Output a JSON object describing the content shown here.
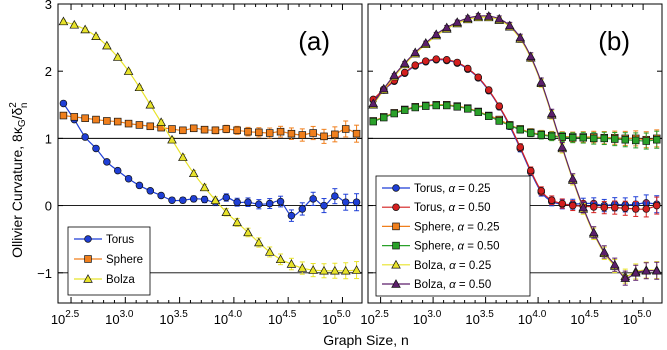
{
  "chart_data": {
    "type": "scatter",
    "xlabel": "Graph Size, n",
    "ylabel": "Ollivier Curvature, 8κ_G/δ_n^2",
    "ylabel_main": "Ollivier Curvature, 8κ",
    "ylabel_sub1": "G",
    "ylabel_slash": "/δ",
    "ylabel_sup": "2",
    "ylabel_sub2": "n",
    "x_scale": "log10",
    "xlim_log10": [
      2.38,
      5.18
    ],
    "ylim": [
      -1.45,
      3.0
    ],
    "x_tick_base": "10",
    "x_tick_exponents_a": [
      "2.5",
      "3.0",
      "3.5",
      "4.0",
      "4.5",
      "5.0"
    ],
    "x_tick_exponents_b": [
      "2.5",
      "3.0",
      "3.5",
      "4.0",
      "4.5",
      "5.0"
    ],
    "y_tick_labels": [
      "−1",
      "0",
      "1",
      "2",
      "3"
    ],
    "y_ticks": [
      -1,
      0,
      1,
      2,
      3
    ],
    "reference_lines": [
      -1,
      0,
      1
    ],
    "panels": [
      {
        "label": "(a)",
        "legend": [
          "Torus",
          "Sphere",
          "Bolza"
        ],
        "legend_location": "lower-left",
        "series": [
          {
            "name": "Torus",
            "marker": "circle",
            "color": "#1f3fd6",
            "x_log10": [
              2.43,
              2.53,
              2.63,
              2.73,
              2.83,
              2.93,
              3.03,
              3.13,
              3.23,
              3.33,
              3.43,
              3.53,
              3.63,
              3.73,
              3.83,
              3.93,
              4.03,
              4.13,
              4.23,
              4.33,
              4.43,
              4.53,
              4.63,
              4.73,
              4.83,
              4.93,
              5.03,
              5.13
            ],
            "y": [
              1.52,
              1.28,
              1.02,
              0.85,
              0.65,
              0.52,
              0.4,
              0.3,
              0.22,
              0.15,
              0.08,
              0.08,
              0.1,
              0.09,
              0.05,
              0.12,
              0.05,
              0.05,
              0.02,
              0.03,
              0.06,
              -0.15,
              -0.05,
              0.1,
              0.0,
              0.14,
              0.05,
              0.05
            ]
          },
          {
            "name": "Sphere",
            "marker": "square",
            "color": "#f07f1c",
            "x_log10": [
              2.43,
              2.53,
              2.63,
              2.73,
              2.83,
              2.93,
              3.03,
              3.13,
              3.23,
              3.33,
              3.43,
              3.53,
              3.63,
              3.73,
              3.83,
              3.93,
              4.03,
              4.13,
              4.23,
              4.33,
              4.43,
              4.53,
              4.63,
              4.73,
              4.83,
              4.93,
              5.03,
              5.13
            ],
            "y": [
              1.34,
              1.32,
              1.3,
              1.28,
              1.26,
              1.25,
              1.22,
              1.2,
              1.18,
              1.16,
              1.14,
              1.12,
              1.15,
              1.13,
              1.12,
              1.14,
              1.12,
              1.1,
              1.09,
              1.08,
              1.1,
              1.07,
              1.05,
              1.08,
              1.03,
              1.06,
              1.14,
              1.07
            ]
          },
          {
            "name": "Bolza",
            "marker": "triangle",
            "color": "#e8e32a",
            "x_log10": [
              2.43,
              2.53,
              2.63,
              2.73,
              2.83,
              2.93,
              3.03,
              3.13,
              3.23,
              3.33,
              3.43,
              3.53,
              3.63,
              3.73,
              3.83,
              3.93,
              4.03,
              4.13,
              4.23,
              4.33,
              4.43,
              4.53,
              4.63,
              4.73,
              4.83,
              4.93,
              5.03,
              5.13
            ],
            "y": [
              2.74,
              2.69,
              2.62,
              2.52,
              2.38,
              2.21,
              2.0,
              1.76,
              1.5,
              1.24,
              0.98,
              0.72,
              0.48,
              0.27,
              0.08,
              -0.1,
              -0.25,
              -0.4,
              -0.55,
              -0.69,
              -0.8,
              -0.87,
              -0.93,
              -0.96,
              -0.97,
              -0.97,
              -0.97,
              -0.96
            ]
          }
        ]
      },
      {
        "label": "(b)",
        "legend": [
          "Torus, α = 0.25",
          "Torus, α = 0.50",
          "Sphere, α = 0.25",
          "Sphere, α = 0.50",
          "Bolza, α = 0.25",
          "Bolza, α = 0.50"
        ],
        "legend_prefix": [
          "Torus",
          "Torus",
          "Sphere",
          "Sphere",
          "Bolza",
          "Bolza"
        ],
        "legend_alpha": [
          "0.25",
          "0.50",
          "0.25",
          "0.50",
          "0.25",
          "0.50"
        ],
        "legend_alpha_symbol": "α",
        "legend_location": "lower-left",
        "series": [
          {
            "name": "Torus, α = 0.25",
            "marker": "circle",
            "color": "#1f3fd6",
            "x_log10": [
              2.43,
              2.53,
              2.63,
              2.73,
              2.83,
              2.93,
              3.03,
              3.13,
              3.23,
              3.33,
              3.43,
              3.53,
              3.63,
              3.73,
              3.83,
              3.93,
              4.03,
              4.13,
              4.23,
              4.33,
              4.43,
              4.53,
              4.63,
              4.73,
              4.83,
              4.93,
              5.03,
              5.13
            ],
            "y": [
              1.57,
              1.72,
              1.85,
              1.97,
              2.08,
              2.14,
              2.17,
              2.16,
              2.12,
              2.03,
              1.9,
              1.71,
              1.47,
              1.18,
              0.85,
              0.5,
              0.2,
              0.06,
              0.02,
              0.02,
              0.03,
              0.03,
              0.0,
              0.02,
              0.01,
              0.02,
              0.04,
              0.02
            ]
          },
          {
            "name": "Torus, α = 0.50",
            "marker": "circle",
            "color": "#d41f1f",
            "x_log10": [
              2.43,
              2.53,
              2.63,
              2.73,
              2.83,
              2.93,
              3.03,
              3.13,
              3.23,
              3.33,
              3.43,
              3.53,
              3.63,
              3.73,
              3.83,
              3.93,
              4.03,
              4.13,
              4.23,
              4.33,
              4.43,
              4.53,
              4.63,
              4.73,
              4.83,
              4.93,
              5.03,
              5.13
            ],
            "y": [
              1.58,
              1.73,
              1.86,
              1.98,
              2.09,
              2.15,
              2.18,
              2.17,
              2.13,
              2.04,
              1.91,
              1.72,
              1.48,
              1.2,
              0.87,
              0.52,
              0.22,
              0.08,
              0.03,
              0.0,
              -0.01,
              -0.02,
              -0.03,
              -0.03,
              -0.04,
              -0.05,
              -0.05,
              0.0
            ]
          },
          {
            "name": "Sphere, α = 0.25",
            "marker": "square",
            "color": "#f07f1c",
            "x_log10": [
              2.43,
              2.53,
              2.63,
              2.73,
              2.83,
              2.93,
              3.03,
              3.13,
              3.23,
              3.33,
              3.43,
              3.53,
              3.63,
              3.73,
              3.83,
              3.93,
              4.03,
              4.13,
              4.23,
              4.33,
              4.43,
              4.53,
              4.63,
              4.73,
              4.83,
              4.93,
              5.03,
              5.13
            ],
            "y": [
              1.26,
              1.32,
              1.38,
              1.43,
              1.47,
              1.49,
              1.5,
              1.5,
              1.48,
              1.45,
              1.4,
              1.34,
              1.28,
              1.2,
              1.14,
              1.09,
              1.06,
              1.04,
              1.03,
              1.02,
              1.02,
              1.02,
              1.01,
              1.01,
              1.0,
              1.0,
              0.98,
              1.0
            ]
          },
          {
            "name": "Sphere, α = 0.50",
            "marker": "square",
            "color": "#2aa12a",
            "x_log10": [
              2.43,
              2.53,
              2.63,
              2.73,
              2.83,
              2.93,
              3.03,
              3.13,
              3.23,
              3.33,
              3.43,
              3.53,
              3.63,
              3.73,
              3.83,
              3.93,
              4.03,
              4.13,
              4.23,
              4.33,
              4.43,
              4.53,
              4.63,
              4.73,
              4.83,
              4.93,
              5.03,
              5.13
            ],
            "y": [
              1.25,
              1.31,
              1.37,
              1.42,
              1.46,
              1.48,
              1.49,
              1.49,
              1.47,
              1.44,
              1.39,
              1.33,
              1.26,
              1.19,
              1.13,
              1.08,
              1.05,
              1.03,
              1.02,
              1.01,
              1.01,
              1.0,
              1.0,
              0.99,
              0.98,
              0.97,
              0.96,
              0.98
            ]
          },
          {
            "name": "Bolza, α = 0.25",
            "marker": "triangle",
            "color": "#e8e32a",
            "x_log10": [
              2.43,
              2.53,
              2.63,
              2.73,
              2.83,
              2.93,
              3.03,
              3.13,
              3.23,
              3.33,
              3.43,
              3.53,
              3.63,
              3.73,
              3.83,
              3.93,
              4.03,
              4.13,
              4.23,
              4.33,
              4.43,
              4.53,
              4.63,
              4.73,
              4.83,
              4.93,
              5.03,
              5.13
            ],
            "y": [
              1.5,
              1.72,
              1.92,
              2.1,
              2.26,
              2.4,
              2.53,
              2.63,
              2.71,
              2.77,
              2.8,
              2.8,
              2.76,
              2.66,
              2.48,
              2.2,
              1.82,
              1.35,
              0.85,
              0.38,
              -0.05,
              -0.42,
              -0.71,
              -0.9,
              -1.05,
              -0.98,
              -0.96,
              -0.96
            ]
          },
          {
            "name": "Bolza, α = 0.50",
            "marker": "triangle",
            "color": "#5c1f6b",
            "x_log10": [
              2.43,
              2.53,
              2.63,
              2.73,
              2.83,
              2.93,
              3.03,
              3.13,
              3.23,
              3.33,
              3.43,
              3.53,
              3.63,
              3.73,
              3.83,
              3.93,
              4.03,
              4.13,
              4.23,
              4.33,
              4.43,
              4.53,
              4.63,
              4.73,
              4.83,
              4.93,
              5.03,
              5.13
            ],
            "y": [
              1.52,
              1.74,
              1.94,
              2.12,
              2.28,
              2.42,
              2.55,
              2.65,
              2.73,
              2.79,
              2.82,
              2.82,
              2.78,
              2.68,
              2.5,
              2.22,
              1.84,
              1.37,
              0.87,
              0.4,
              -0.03,
              -0.4,
              -0.69,
              -0.88,
              -1.08,
              -1.0,
              -0.97,
              -0.97
            ]
          }
        ]
      }
    ]
  }
}
